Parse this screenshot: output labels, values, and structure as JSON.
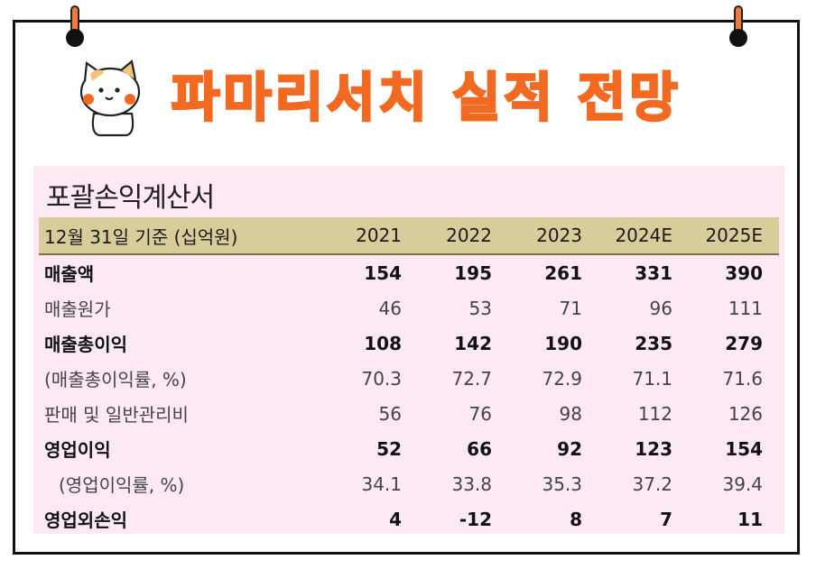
{
  "title": "파마리서치 실적 전망",
  "statement_title": "포괄손익계산서",
  "table": {
    "header_label": "12월 31일 기준 (십억원)",
    "years": [
      "2021",
      "2022",
      "2023",
      "2024E",
      "2025E"
    ],
    "rows": [
      {
        "label": "매출액",
        "values": [
          "154",
          "195",
          "261",
          "331",
          "390"
        ]
      },
      {
        "label": "매출원가",
        "values": [
          "46",
          "53",
          "71",
          "96",
          "111"
        ]
      },
      {
        "label": "매출총이익",
        "values": [
          "108",
          "142",
          "190",
          "235",
          "279"
        ]
      },
      {
        "label": "(매출총이익률, %)",
        "values": [
          "70.3",
          "72.7",
          "72.9",
          "71.1",
          "71.6"
        ]
      },
      {
        "label": "판매 및 일반관리비",
        "values": [
          "56",
          "76",
          "98",
          "112",
          "126"
        ]
      },
      {
        "label": "영업이익",
        "values": [
          "52",
          "66",
          "92",
          "123",
          "154"
        ]
      },
      {
        "label": "(영업이익률, %)",
        "values": [
          "34.1",
          "33.8",
          "35.3",
          "37.2",
          "39.4"
        ]
      },
      {
        "label": "영업외손익",
        "values": [
          "4",
          "-12",
          "8",
          "7",
          "11"
        ]
      }
    ]
  },
  "colors": {
    "title": "#f26a22",
    "panel_bg": "#fce9f4",
    "header_bg": "#d8cc9a",
    "pin": "#f07a3c"
  },
  "icons": [
    "binder-pin-icon",
    "cat-mascot-icon"
  ]
}
